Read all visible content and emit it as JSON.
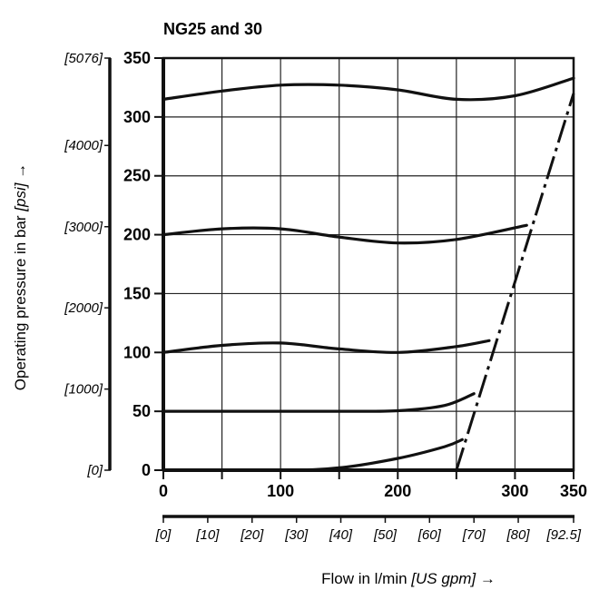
{
  "chart_data": {
    "type": "line",
    "title": "NG25 and 30",
    "xlabel": "Flow in l/min",
    "xlabel_secondary": "[US gpm]",
    "ylabel": "Operating pressure in bar",
    "ylabel_secondary": "[psi]",
    "arrow": "→",
    "xlim": [
      0,
      350
    ],
    "ylim": [
      0,
      350
    ],
    "grid": true,
    "x_ticks": [
      "0",
      "100",
      "200",
      "300",
      "350"
    ],
    "y_ticks": [
      "0",
      "50",
      "100",
      "150",
      "200",
      "250",
      "300",
      "350"
    ],
    "x_secondary_ticks": [
      {
        "label": "[0]",
        "x": 0
      },
      {
        "label": "[10]",
        "x": 37.85
      },
      {
        "label": "[20]",
        "x": 75.7
      },
      {
        "label": "[30]",
        "x": 113.6
      },
      {
        "label": "[40]",
        "x": 151.4
      },
      {
        "label": "[50]",
        "x": 189.3
      },
      {
        "label": "[60]",
        "x": 227.1
      },
      {
        "label": "[70]",
        "x": 265
      },
      {
        "label": "[80]",
        "x": 302.8
      },
      {
        "label": "[92.5]",
        "x": 350
      }
    ],
    "y_secondary_ticks": [
      {
        "label": "[0]",
        "y": 0
      },
      {
        "label": "[1000]",
        "y": 68.9
      },
      {
        "label": "[2000]",
        "y": 137.9
      },
      {
        "label": "[3000]",
        "y": 206.8
      },
      {
        "label": "[4000]",
        "y": 275.8
      },
      {
        "label": "[5076]",
        "y": 350
      }
    ],
    "series": [
      {
        "style": "solid",
        "x": [
          0,
          50,
          100,
          150,
          200,
          250,
          300,
          350
        ],
        "y": [
          315,
          322,
          327,
          327,
          323,
          315,
          318,
          333
        ]
      },
      {
        "style": "solid",
        "x": [
          0,
          50,
          100,
          150,
          200,
          250,
          310
        ],
        "y": [
          200,
          205,
          205,
          198,
          193,
          196,
          208
        ]
      },
      {
        "style": "solid",
        "x": [
          0,
          50,
          100,
          150,
          200,
          250,
          278
        ],
        "y": [
          100,
          106,
          108,
          103,
          100,
          105,
          110
        ]
      },
      {
        "style": "solid",
        "x": [
          0,
          50,
          100,
          150,
          200,
          240,
          265
        ],
        "y": [
          50,
          50,
          50,
          50,
          50.5,
          55,
          65
        ]
      },
      {
        "style": "solid",
        "x": [
          0,
          100,
          150,
          200,
          240,
          255
        ],
        "y": [
          0,
          0,
          2,
          10,
          20,
          26
        ]
      },
      {
        "style": "dash-dot",
        "x": [
          250,
          350
        ],
        "y": [
          0,
          320
        ]
      }
    ]
  }
}
